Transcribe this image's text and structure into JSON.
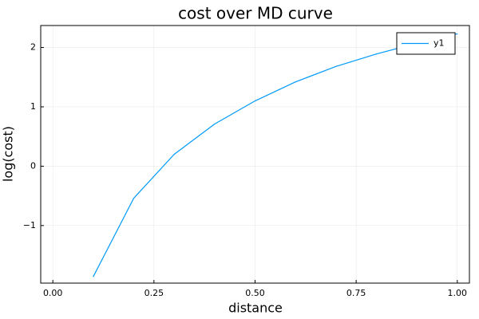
{
  "chart_data": {
    "type": "line",
    "title": "cost over MD curve",
    "xlabel": "distance",
    "ylabel": "log(cost)",
    "xlim": [
      -0.03,
      1.03
    ],
    "ylim": [
      -1.97,
      2.37
    ],
    "xticks": [
      0.0,
      0.25,
      0.5,
      0.75,
      1.0
    ],
    "xtick_labels": [
      "0.00",
      "0.25",
      "0.50",
      "0.75",
      "1.00"
    ],
    "yticks": [
      -1,
      0,
      1,
      2
    ],
    "ytick_labels": [
      "−1",
      "0",
      "1",
      "2"
    ],
    "grid": true,
    "legend_position": "top-right",
    "series": [
      {
        "name": "y1",
        "color": "#009AF9",
        "x": [
          0.1,
          0.2,
          0.3,
          0.4,
          0.5,
          0.6,
          0.7,
          0.8,
          0.9,
          1.0
        ],
        "y": [
          -1.86,
          -0.54,
          0.2,
          0.71,
          1.1,
          1.42,
          1.68,
          1.89,
          2.07,
          2.23
        ]
      }
    ]
  }
}
